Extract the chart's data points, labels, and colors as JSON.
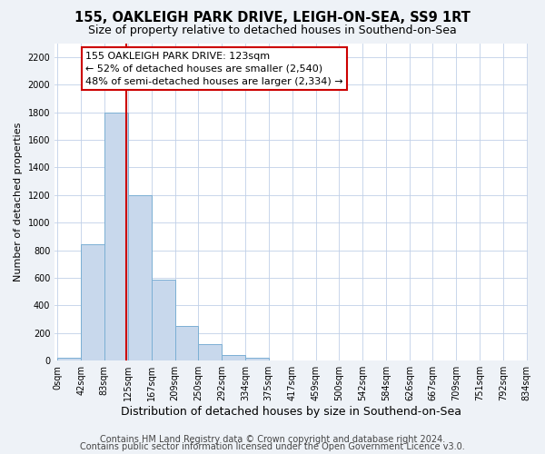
{
  "title": "155, OAKLEIGH PARK DRIVE, LEIGH-ON-SEA, SS9 1RT",
  "subtitle": "Size of property relative to detached houses in Southend-on-Sea",
  "xlabel": "Distribution of detached houses by size in Southend-on-Sea",
  "ylabel": "Number of detached properties",
  "bar_edges": [
    0,
    42,
    83,
    125,
    167,
    209,
    250,
    292,
    334,
    375,
    417,
    459,
    500,
    542,
    584,
    626,
    667,
    709,
    751,
    792,
    834
  ],
  "bar_heights": [
    20,
    840,
    1800,
    1200,
    590,
    250,
    120,
    40,
    20,
    0,
    0,
    0,
    0,
    0,
    0,
    0,
    0,
    0,
    0,
    0
  ],
  "bar_color": "#c8d8ec",
  "bar_edge_color": "#7bafd4",
  "vline_x": 123,
  "vline_color": "#cc0000",
  "annotation_line1": "155 OAKLEIGH PARK DRIVE: 123sqm",
  "annotation_line2": "← 52% of detached houses are smaller (2,540)",
  "annotation_line3": "48% of semi-detached houses are larger (2,334) →",
  "annotation_box_color": "white",
  "annotation_box_edge_color": "#cc0000",
  "ylim": [
    0,
    2300
  ],
  "yticks": [
    0,
    200,
    400,
    600,
    800,
    1000,
    1200,
    1400,
    1600,
    1800,
    2000,
    2200
  ],
  "xtick_labels": [
    "0sqm",
    "42sqm",
    "83sqm",
    "125sqm",
    "167sqm",
    "209sqm",
    "250sqm",
    "292sqm",
    "334sqm",
    "375sqm",
    "417sqm",
    "459sqm",
    "500sqm",
    "542sqm",
    "584sqm",
    "626sqm",
    "667sqm",
    "709sqm",
    "751sqm",
    "792sqm",
    "834sqm"
  ],
  "footer_line1": "Contains HM Land Registry data © Crown copyright and database right 2024.",
  "footer_line2": "Contains public sector information licensed under the Open Government Licence v3.0.",
  "background_color": "#eef2f7",
  "plot_background_color": "white",
  "grid_color": "#c0d0e8",
  "title_fontsize": 10.5,
  "subtitle_fontsize": 9,
  "tick_fontsize": 7,
  "ylabel_fontsize": 8,
  "xlabel_fontsize": 9,
  "annotation_fontsize": 8,
  "footer_fontsize": 7
}
